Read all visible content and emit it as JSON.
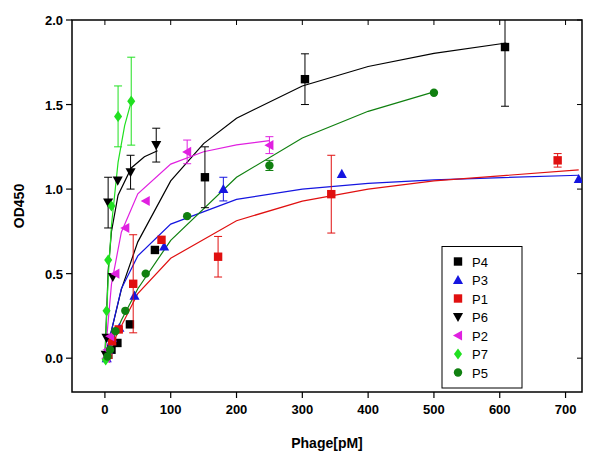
{
  "chart_data": {
    "type": "scatter",
    "x_label": "Phage[pM]",
    "y_label": "OD450",
    "xlim": [
      -50,
      725
    ],
    "ylim": [
      -0.2,
      2.0
    ],
    "xticks": [
      0,
      100,
      200,
      300,
      400,
      500,
      600,
      700
    ],
    "yticks": [
      {
        "value": 0,
        "label": "0.0"
      },
      0.5,
      {
        "value": 1,
        "label": "1.0"
      },
      1.5,
      {
        "value": 2,
        "label": "2.0"
      }
    ],
    "grid": false,
    "legend": "lower right",
    "series": [
      {
        "name": "P4",
        "color": "#000000",
        "marker": "square",
        "x": [
          5,
          10,
          19,
          38,
          76,
          152,
          304,
          608
        ],
        "values": [
          0.02,
          0.05,
          0.09,
          0.2,
          0.64,
          1.07,
          1.65,
          1.84
        ],
        "errors": [
          null,
          null,
          null,
          null,
          null,
          0.18,
          0.15,
          0.35
        ],
        "fit": {
          "x": [
            0,
            25,
            50,
            100,
            150,
            200,
            300,
            400,
            500,
            610
          ],
          "values": [
            0,
            0.407,
            0.688,
            1.048,
            1.269,
            1.419,
            1.61,
            1.725,
            1.803,
            1.864
          ]
        }
      },
      {
        "name": "P3",
        "color": "#1515e0",
        "marker": "triangle-up",
        "x": [
          2.8,
          5.6,
          11,
          22,
          45,
          90,
          180,
          360,
          720
        ],
        "values": [
          0.0,
          0.05,
          0.12,
          0.18,
          0.37,
          0.66,
          1.0,
          1.09,
          1.06
        ],
        "errors": [
          null,
          null,
          null,
          null,
          null,
          null,
          0.07,
          null,
          null
        ],
        "fit": {
          "x": [
            0,
            25,
            50,
            100,
            200,
            300,
            400,
            500,
            720
          ],
          "values": [
            0,
            0.411,
            0.605,
            0.793,
            0.939,
            1.0,
            1.034,
            1.055,
            1.082
          ]
        }
      },
      {
        "name": "P1",
        "color": "#e01010",
        "marker": "square",
        "x": [
          5,
          11,
          21,
          43,
          86,
          172,
          344,
          688
        ],
        "values": [
          0.02,
          0.1,
          0.17,
          0.44,
          0.7,
          0.6,
          0.97,
          1.17
        ],
        "errors": [
          null,
          null,
          null,
          0.29,
          null,
          0.12,
          0.23,
          0.04
        ],
        "fit": {
          "x": [
            0,
            50,
            100,
            200,
            300,
            400,
            500,
            720
          ],
          "values": [
            0,
            0.382,
            0.591,
            0.813,
            0.929,
            1.0,
            1.048,
            1.114
          ]
        }
      },
      {
        "name": "P6",
        "color": "#000000",
        "marker": "triangle-down",
        "x": [
          1.2,
          2.4,
          4.9,
          12,
          19.5,
          39,
          78
        ],
        "values": [
          0.02,
          0.12,
          0.92,
          0.48,
          1.05,
          1.1,
          1.26
        ],
        "errors": [
          null,
          null,
          0.15,
          null,
          null,
          0.1,
          0.1
        ],
        "fit": {
          "x": [
            0,
            5,
            10,
            20,
            40,
            60,
            80
          ],
          "values": [
            0,
            0.519,
            0.75,
            0.964,
            1.125,
            1.191,
            1.227
          ]
        }
      },
      {
        "name": "P2",
        "color": "#e020e0",
        "marker": "triangle-left",
        "x": [
          2,
          4,
          8,
          16,
          31,
          62,
          125,
          250
        ],
        "values": [
          0.0,
          0.05,
          0.13,
          0.5,
          0.77,
          0.93,
          1.22,
          1.26
        ],
        "errors": [
          null,
          null,
          null,
          null,
          null,
          null,
          0.07,
          0.05
        ],
        "fit": {
          "x": [
            0,
            10,
            25,
            50,
            100,
            150,
            200,
            250
          ],
          "values": [
            0,
            0.438,
            0.745,
            0.972,
            1.148,
            1.221,
            1.261,
            1.287
          ]
        }
      },
      {
        "name": "P7",
        "color": "#20e020",
        "marker": "diamond",
        "x": [
          1.2,
          2.5,
          5,
          10,
          20,
          40
        ],
        "values": [
          -0.01,
          0.28,
          0.58,
          0.9,
          1.43,
          1.52
        ],
        "errors": [
          null,
          null,
          null,
          null,
          0.18,
          0.26
        ],
        "fit": {
          "x": [
            0,
            5,
            10,
            20,
            30,
            40
          ],
          "values": [
            0,
            0.478,
            0.786,
            1.158,
            1.375,
            1.517
          ]
        }
      },
      {
        "name": "P5",
        "color": "#108010",
        "marker": "circle",
        "x": [
          3.9,
          7.8,
          16,
          31,
          62,
          125,
          250,
          500
        ],
        "values": [
          0.01,
          0.05,
          0.16,
          0.28,
          0.5,
          0.84,
          1.14,
          1.57
        ],
        "errors": [
          null,
          null,
          null,
          null,
          null,
          null,
          0.03,
          null
        ],
        "fit": {
          "x": [
            0,
            25,
            50,
            100,
            200,
            300,
            400,
            500
          ],
          "values": [
            0,
            0.225,
            0.411,
            0.697,
            1.07,
            1.302,
            1.46,
            1.575
          ]
        }
      }
    ]
  }
}
